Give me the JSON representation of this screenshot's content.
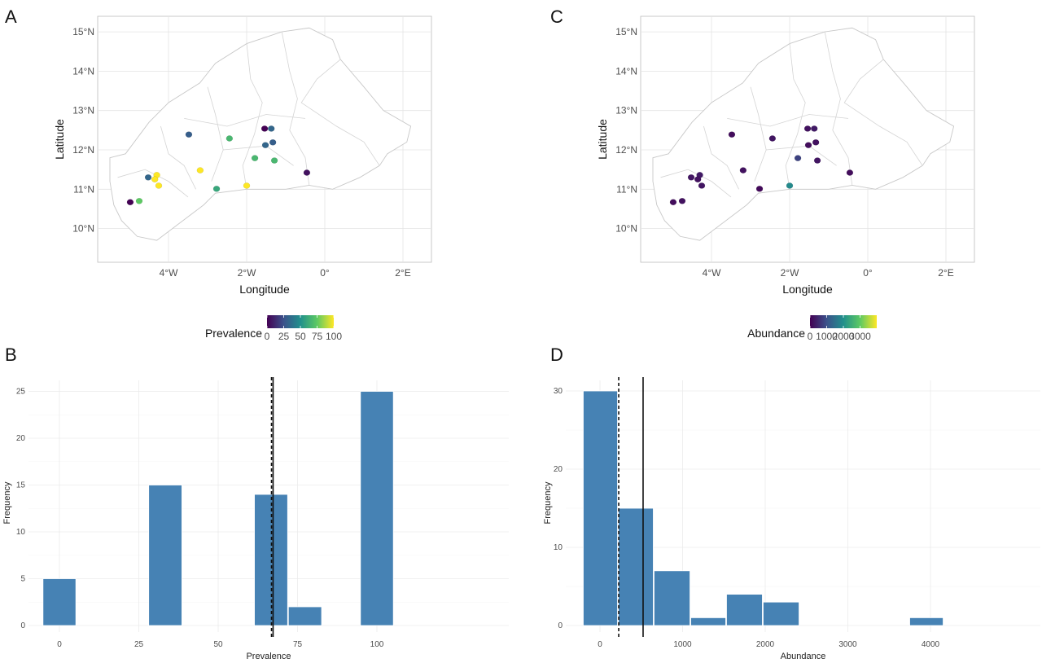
{
  "panels": {
    "a": "A",
    "b": "B",
    "c": "C",
    "d": "D"
  },
  "chart_data": [
    {
      "type": "scatter",
      "panel": "A",
      "subtype": "map",
      "xlabel": "Longitude",
      "ylabel": "Latitude",
      "xlim": [
        -5.8,
        2.8
      ],
      "ylim": [
        9.2,
        15.4
      ],
      "x_ticks": [
        {
          "v": -4,
          "label": "4°W"
        },
        {
          "v": -2,
          "label": "2°W"
        },
        {
          "v": 0,
          "label": "0°"
        },
        {
          "v": 2,
          "label": "2°E"
        }
      ],
      "y_ticks": [
        {
          "v": 10,
          "label": "10°N"
        },
        {
          "v": 11,
          "label": "11°N"
        },
        {
          "v": 12,
          "label": "12°N"
        },
        {
          "v": 13,
          "label": "13°N"
        },
        {
          "v": 14,
          "label": "14°N"
        },
        {
          "v": 15,
          "label": "15°N"
        }
      ],
      "grid": true,
      "color_scale": {
        "name": "viridis",
        "title": "Prevalence",
        "range": [
          0,
          100
        ],
        "ticks": [
          "0",
          "25",
          "50",
          "75",
          "100"
        ],
        "tick_values": [
          0,
          25,
          50,
          75,
          100
        ]
      },
      "points": [
        {
          "lon": -4.98,
          "lat": 10.67,
          "value": 0
        },
        {
          "lon": -4.75,
          "lat": 10.7,
          "value": 75
        },
        {
          "lon": -4.52,
          "lat": 11.3,
          "value": 33
        },
        {
          "lon": -4.3,
          "lat": 11.36,
          "value": 100
        },
        {
          "lon": -4.35,
          "lat": 11.25,
          "value": 100
        },
        {
          "lon": -4.25,
          "lat": 11.09,
          "value": 100
        },
        {
          "lon": -3.48,
          "lat": 12.39,
          "value": 30
        },
        {
          "lon": -3.19,
          "lat": 11.48,
          "value": 100
        },
        {
          "lon": -2.77,
          "lat": 11.01,
          "value": 60
        },
        {
          "lon": -2.44,
          "lat": 12.29,
          "value": 67
        },
        {
          "lon": -2.0,
          "lat": 11.09,
          "value": 100
        },
        {
          "lon": -1.79,
          "lat": 11.79,
          "value": 67
        },
        {
          "lon": -1.54,
          "lat": 12.54,
          "value": 0
        },
        {
          "lon": -1.37,
          "lat": 12.54,
          "value": 33
        },
        {
          "lon": -1.52,
          "lat": 12.12,
          "value": 33
        },
        {
          "lon": -1.33,
          "lat": 12.19,
          "value": 30
        },
        {
          "lon": -1.29,
          "lat": 11.73,
          "value": 67
        },
        {
          "lon": -0.46,
          "lat": 11.42,
          "value": 5
        }
      ]
    },
    {
      "type": "bar",
      "panel": "B",
      "subtype": "histogram",
      "xlabel": "Prevalence",
      "ylabel": "Frequency",
      "xlim": [
        -10,
        112
      ],
      "ylim": [
        0,
        27
      ],
      "x_ticks": [
        "0",
        "25",
        "50",
        "75",
        "100"
      ],
      "x_tick_values": [
        0,
        25,
        50,
        75,
        100
      ],
      "y_ticks": [
        "0",
        "5",
        "10",
        "15",
        "20",
        "25"
      ],
      "y_tick_values": [
        0,
        5,
        10,
        15,
        20,
        25
      ],
      "bins": [
        {
          "from": -5.3,
          "to": 5.3,
          "count": 5
        },
        {
          "from": 28.0,
          "to": 38.7,
          "count": 15
        },
        {
          "from": 61.3,
          "to": 72.0,
          "count": 14
        },
        {
          "from": 72.0,
          "to": 82.7,
          "count": 2
        },
        {
          "from": 94.7,
          "to": 105.3,
          "count": 25
        }
      ],
      "bar_color": "#4682B4",
      "vlines": [
        {
          "value": 66.8,
          "style": "dashed"
        },
        {
          "value": 67.3,
          "style": "solid"
        }
      ],
      "grid": true
    },
    {
      "type": "scatter",
      "panel": "C",
      "subtype": "map",
      "xlabel": "Longitude",
      "ylabel": "Latitude",
      "xlim": [
        -5.8,
        2.8
      ],
      "ylim": [
        9.2,
        15.4
      ],
      "x_ticks": [
        {
          "v": -4,
          "label": "4°W"
        },
        {
          "v": -2,
          "label": "2°W"
        },
        {
          "v": 0,
          "label": "0°"
        },
        {
          "v": 2,
          "label": "2°E"
        }
      ],
      "y_ticks": [
        {
          "v": 10,
          "label": "10°N"
        },
        {
          "v": 11,
          "label": "11°N"
        },
        {
          "v": 12,
          "label": "12°N"
        },
        {
          "v": 13,
          "label": "13°N"
        },
        {
          "v": 14,
          "label": "14°N"
        },
        {
          "v": 15,
          "label": "15°N"
        }
      ],
      "grid": true,
      "color_scale": {
        "name": "viridis",
        "title": "Abundance",
        "range": [
          0,
          4000
        ],
        "ticks": [
          "0",
          "1000",
          "2000",
          "3000"
        ],
        "tick_values": [
          0,
          1000,
          2000,
          3000
        ]
      },
      "points": [
        {
          "lon": -4.98,
          "lat": 10.67,
          "value": 150
        },
        {
          "lon": -4.75,
          "lat": 10.7,
          "value": 200
        },
        {
          "lon": -4.52,
          "lat": 11.3,
          "value": 250
        },
        {
          "lon": -4.3,
          "lat": 11.36,
          "value": 300
        },
        {
          "lon": -4.35,
          "lat": 11.25,
          "value": 200
        },
        {
          "lon": -4.25,
          "lat": 11.09,
          "value": 250
        },
        {
          "lon": -3.48,
          "lat": 12.39,
          "value": 150
        },
        {
          "lon": -3.19,
          "lat": 11.48,
          "value": 200
        },
        {
          "lon": -2.77,
          "lat": 11.01,
          "value": 100
        },
        {
          "lon": -2.44,
          "lat": 12.29,
          "value": 250
        },
        {
          "lon": -2.0,
          "lat": 11.09,
          "value": 1900
        },
        {
          "lon": -1.79,
          "lat": 11.79,
          "value": 800
        },
        {
          "lon": -1.54,
          "lat": 12.54,
          "value": 200
        },
        {
          "lon": -1.37,
          "lat": 12.54,
          "value": 300
        },
        {
          "lon": -1.52,
          "lat": 12.12,
          "value": 150
        },
        {
          "lon": -1.33,
          "lat": 12.19,
          "value": 200
        },
        {
          "lon": -1.29,
          "lat": 11.73,
          "value": 250
        },
        {
          "lon": -0.46,
          "lat": 11.42,
          "value": 150
        }
      ]
    },
    {
      "type": "bar",
      "panel": "D",
      "subtype": "histogram",
      "xlabel": "Abundance",
      "ylabel": "Frequency",
      "xlim": [
        -400,
        4300
      ],
      "ylim": [
        0,
        31
      ],
      "x_ticks": [
        "0",
        "1000",
        "2000",
        "3000",
        "4000"
      ],
      "x_tick_values": [
        0,
        1000,
        2000,
        3000,
        4000
      ],
      "y_ticks": [
        "0",
        "10",
        "20",
        "30"
      ],
      "y_tick_values": [
        0,
        10,
        20,
        30
      ],
      "bins": [
        {
          "from": -207,
          "to": 217,
          "count": 30
        },
        {
          "from": 217,
          "to": 650,
          "count": 15
        },
        {
          "from": 650,
          "to": 1094,
          "count": 7
        },
        {
          "from": 1094,
          "to": 1527,
          "count": 1
        },
        {
          "from": 1527,
          "to": 1970,
          "count": 4
        },
        {
          "from": 1970,
          "to": 2414,
          "count": 3
        },
        {
          "from": 3744,
          "to": 4158,
          "count": 1
        }
      ],
      "bar_color": "#4682B4",
      "vlines": [
        {
          "value": 227,
          "style": "dashed"
        },
        {
          "value": 522,
          "style": "solid"
        }
      ],
      "grid": true
    }
  ]
}
